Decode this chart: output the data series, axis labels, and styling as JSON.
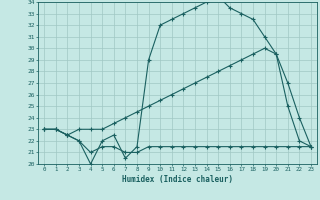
{
  "xlabel": "Humidex (Indice chaleur)",
  "xlim": [
    -0.5,
    23.5
  ],
  "ylim": [
    20,
    34
  ],
  "xticks": [
    0,
    1,
    2,
    3,
    4,
    5,
    6,
    7,
    8,
    9,
    10,
    11,
    12,
    13,
    14,
    15,
    16,
    17,
    18,
    19,
    20,
    21,
    22,
    23
  ],
  "yticks": [
    20,
    21,
    22,
    23,
    24,
    25,
    26,
    27,
    28,
    29,
    30,
    31,
    32,
    33,
    34
  ],
  "bg_color": "#c5e8e4",
  "line_color": "#1a6060",
  "grid_color": "#a0c8c4",
  "line1_x": [
    0,
    1,
    2,
    3,
    4,
    5,
    6,
    7,
    8,
    9,
    10,
    11,
    12,
    13,
    14,
    15,
    16,
    17,
    18,
    19,
    20,
    21,
    22,
    23
  ],
  "line1_y": [
    23,
    23,
    22.5,
    22,
    20,
    22,
    22.5,
    20.5,
    21.5,
    29,
    32,
    32.5,
    33,
    33.5,
    34,
    34.5,
    33.5,
    33,
    32.5,
    31,
    29.5,
    27,
    24,
    21.5
  ],
  "line2_x": [
    0,
    1,
    2,
    3,
    4,
    5,
    6,
    7,
    8,
    9,
    10,
    11,
    12,
    13,
    14,
    15,
    16,
    17,
    18,
    19,
    20,
    21,
    22,
    23
  ],
  "line2_y": [
    23,
    23,
    22.5,
    23,
    23,
    23,
    23.5,
    24,
    24.5,
    25,
    25.5,
    26,
    26.5,
    27,
    27.5,
    28,
    28.5,
    29,
    29.5,
    30,
    29.5,
    25,
    22,
    21.5
  ],
  "line3_x": [
    0,
    1,
    2,
    3,
    4,
    5,
    6,
    7,
    8,
    9,
    10,
    11,
    12,
    13,
    14,
    15,
    16,
    17,
    18,
    19,
    20,
    21,
    22,
    23
  ],
  "line3_y": [
    23,
    23,
    22.5,
    22,
    21,
    21.5,
    21.5,
    21,
    21,
    21.5,
    21.5,
    21.5,
    21.5,
    21.5,
    21.5,
    21.5,
    21.5,
    21.5,
    21.5,
    21.5,
    21.5,
    21.5,
    21.5,
    21.5
  ]
}
